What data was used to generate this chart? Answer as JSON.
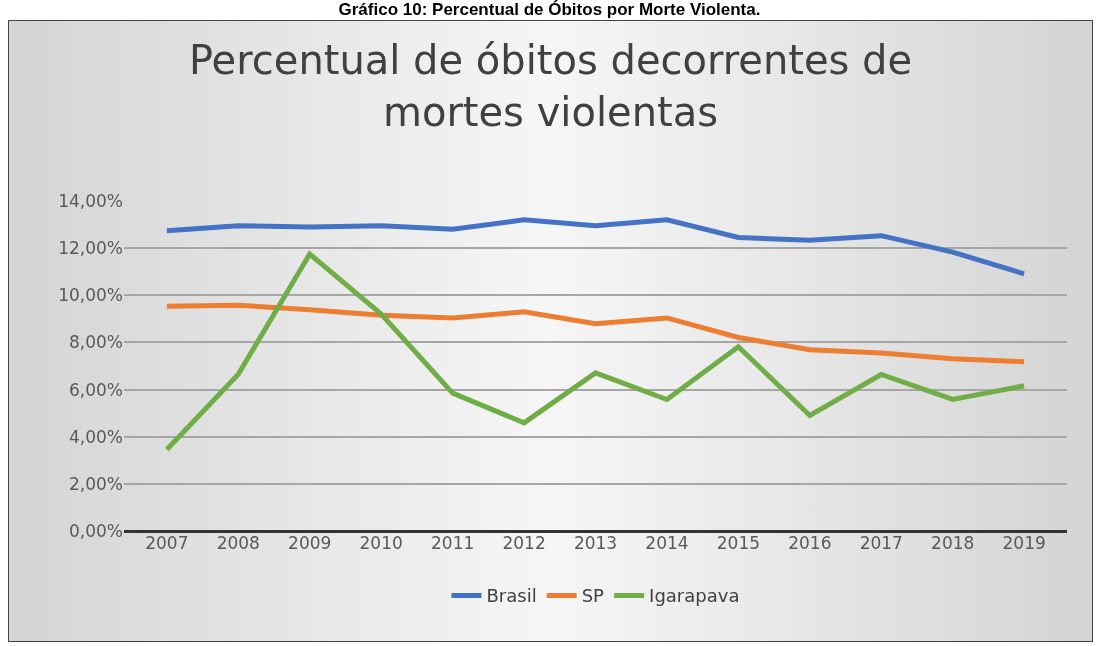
{
  "chart_data": {
    "type": "line",
    "title": "Percentual de óbitos decorrentes de mortes violentas",
    "annotations": [
      "Gráfico 10: Percentual de Óbitos por Morte Violenta."
    ],
    "categories": [
      "2007",
      "2008",
      "2009",
      "2010",
      "2011",
      "2012",
      "2013",
      "2014",
      "2015",
      "2016",
      "2017",
      "2018",
      "2019"
    ],
    "series": [
      {
        "name": "Brasil",
        "color": "#4472c4",
        "values": [
          12.74,
          12.95,
          12.9,
          12.95,
          12.8,
          13.2,
          12.95,
          13.2,
          12.45,
          12.34,
          12.53,
          11.83,
          10.91
        ]
      },
      {
        "name": "SP",
        "color": "#ed7d31",
        "values": [
          9.54,
          9.58,
          9.39,
          9.15,
          9.04,
          9.3,
          8.79,
          9.04,
          8.21,
          7.69,
          7.55,
          7.31,
          7.18
        ]
      },
      {
        "name": "Igarapava",
        "color": "#70ad47",
        "values": [
          3.46,
          6.65,
          11.75,
          9.2,
          5.85,
          4.59,
          6.71,
          5.58,
          7.82,
          4.9,
          6.64,
          5.58,
          6.16
        ]
      }
    ],
    "ylim": [
      0,
      14
    ],
    "yticks": [
      {
        "value": 0,
        "label": "0,00%"
      },
      {
        "value": 2,
        "label": "2,00%"
      },
      {
        "value": 4,
        "label": "4,00%"
      },
      {
        "value": 6,
        "label": "6,00%"
      },
      {
        "value": 8,
        "label": "8,00%"
      },
      {
        "value": 10,
        "label": "10,00%"
      },
      {
        "value": 12,
        "label": "12,00%"
      },
      {
        "value": 14,
        "label": "14,00%"
      }
    ],
    "grid": "y",
    "legend": "bottom",
    "marker": "none",
    "line_style": "solid"
  }
}
